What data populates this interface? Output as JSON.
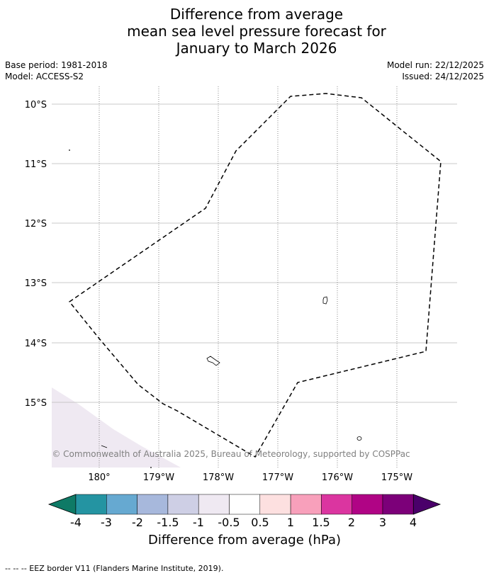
{
  "title": {
    "line1": "Difference from average",
    "line2": "mean sea level pressure forecast for",
    "line3": "January to March 2026"
  },
  "meta": {
    "base_period": "Base period: 1981-2018",
    "model": "Model: ACCESS-S2",
    "model_run": "Model run: 22/12/2025",
    "issued": "Issued: 24/12/2025"
  },
  "map": {
    "lat_labels": [
      "10°S",
      "11°S",
      "12°S",
      "13°S",
      "14°S",
      "15°S"
    ],
    "lon_labels": [
      "180°",
      "179°W",
      "178°W",
      "177°W",
      "176°W",
      "175°W"
    ],
    "copyright": "© Commonwealth of Australia 2025, Bureau of Meteorology, supported by COSPPac"
  },
  "colorbar": {
    "ticks": [
      "-4",
      "-3",
      "-2",
      "-1.5",
      "-1",
      "-0.5",
      "0.5",
      "1",
      "1.5",
      "2",
      "3",
      "4"
    ],
    "colors": [
      "#0e7a66",
      "#2494a2",
      "#66a9d1",
      "#a7b8dc",
      "#cecfe5",
      "#efe9f2",
      "#ffffff",
      "#fde0e0",
      "#f8a0bb",
      "#db35a0",
      "#b00485",
      "#7c0079",
      "#4a006a"
    ],
    "label": "Difference from average (hPa)"
  },
  "footnote": "-- -- -- EEZ border V11 (Flanders Marine Institute, 2019)."
}
